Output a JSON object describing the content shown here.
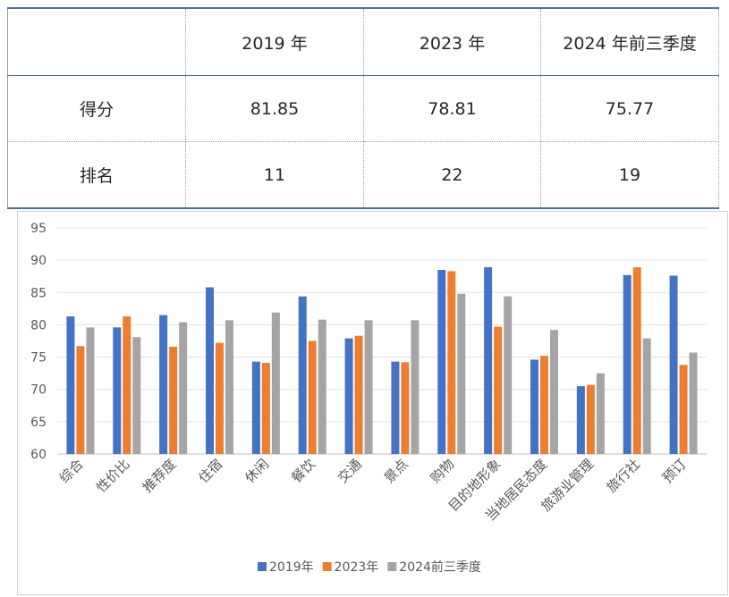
{
  "table": {
    "header": [
      "",
      "2019 年",
      "2023 年",
      "2024 年前三季度"
    ],
    "rows": [
      {
        "label": "得分",
        "values": [
          "81.85",
          "78.81",
          "75.77"
        ]
      },
      {
        "label": "排名",
        "values": [
          "11",
          "22",
          "19"
        ]
      }
    ]
  },
  "chart_data": {
    "type": "bar",
    "title": "",
    "xlabel": "",
    "ylabel": "",
    "ylim": [
      60,
      95
    ],
    "yticks": [
      60,
      65,
      70,
      75,
      80,
      85,
      90,
      95
    ],
    "grid": true,
    "legend_position": "bottom",
    "categories": [
      "综合",
      "性价比",
      "推荐度",
      "住宿",
      "休闲",
      "餐饮",
      "交通",
      "景点",
      "购物",
      "目的地形象",
      "当地居民态度",
      "旅游业管理",
      "旅行社",
      "预订"
    ],
    "series": [
      {
        "name": "2019年",
        "color": "#4472C4",
        "values": [
          81.3,
          79.6,
          81.5,
          85.8,
          74.3,
          84.4,
          77.9,
          74.3,
          88.5,
          88.9,
          74.6,
          70.5,
          87.7,
          87.6
        ]
      },
      {
        "name": "2023年",
        "color": "#ED7D31",
        "values": [
          76.7,
          81.3,
          76.6,
          77.2,
          74.1,
          77.5,
          78.3,
          74.2,
          88.3,
          79.7,
          75.2,
          70.7,
          88.9,
          73.8
        ]
      },
      {
        "name": "2024前三季度",
        "color": "#A5A5A5",
        "values": [
          79.6,
          78.1,
          80.4,
          80.7,
          81.9,
          80.8,
          80.7,
          80.7,
          84.8,
          84.4,
          79.2,
          72.5,
          77.9,
          75.7
        ]
      }
    ]
  }
}
